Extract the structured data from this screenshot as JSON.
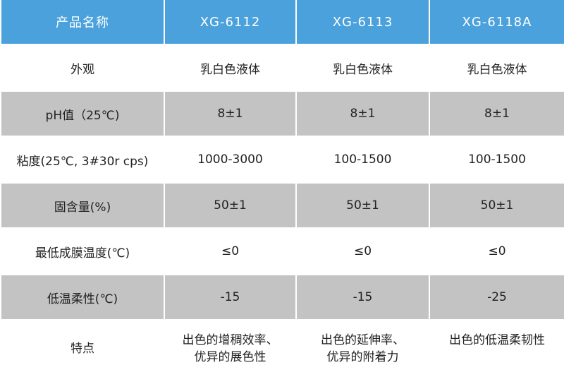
{
  "colors": {
    "header": "#4aa1dc",
    "stripe": "#c3c3c3"
  },
  "headers": [
    "产品名称",
    "XG-6112",
    "XG-6113",
    "XG-6118A"
  ],
  "rows": [
    [
      "外观",
      "乳白色液体",
      "乳白色液体",
      "乳白色液体"
    ],
    [
      "pH值（25℃)",
      "8±1",
      "8±1",
      "8±1"
    ],
    [
      "粘度(25℃, 3#30r cps)",
      "1000-3000",
      "100-1500",
      "100-1500"
    ],
    [
      "固含量(%)",
      "50±1",
      "50±1",
      "50±1"
    ],
    [
      "最低成膜温度(℃)",
      "≤0",
      "≤0",
      "≤0"
    ],
    [
      "低温柔性(℃)",
      "-15",
      "-15",
      "-25"
    ]
  ],
  "features": {
    "label": "特点",
    "xg6112": [
      "出色的增稠效率、",
      "优异的展色性"
    ],
    "xg6113": [
      "出色的延伸率、",
      "优异的附着力"
    ],
    "xg6118a": [
      "出色的低温柔韧性"
    ]
  }
}
